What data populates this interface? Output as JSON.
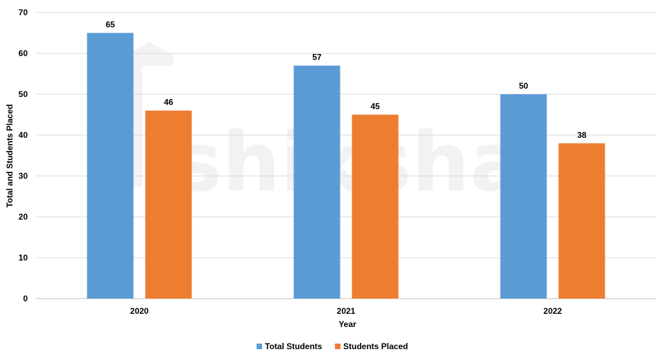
{
  "watermark_text": "shiksha",
  "chart_data": {
    "type": "bar",
    "categories": [
      "2020",
      "2021",
      "2022"
    ],
    "series": [
      {
        "name": "Total Students",
        "values": [
          65,
          57,
          50
        ],
        "color": "#5b9bd5"
      },
      {
        "name": "Students Placed",
        "values": [
          46,
          45,
          38
        ],
        "color": "#ed7d31"
      }
    ],
    "title": "",
    "xlabel": "Year",
    "ylabel": "Total and Students Placed",
    "ylim": [
      0,
      70
    ],
    "yticks": [
      0,
      10,
      20,
      30,
      40,
      50,
      60,
      70
    ],
    "grid": true,
    "legend_position": "bottom"
  }
}
